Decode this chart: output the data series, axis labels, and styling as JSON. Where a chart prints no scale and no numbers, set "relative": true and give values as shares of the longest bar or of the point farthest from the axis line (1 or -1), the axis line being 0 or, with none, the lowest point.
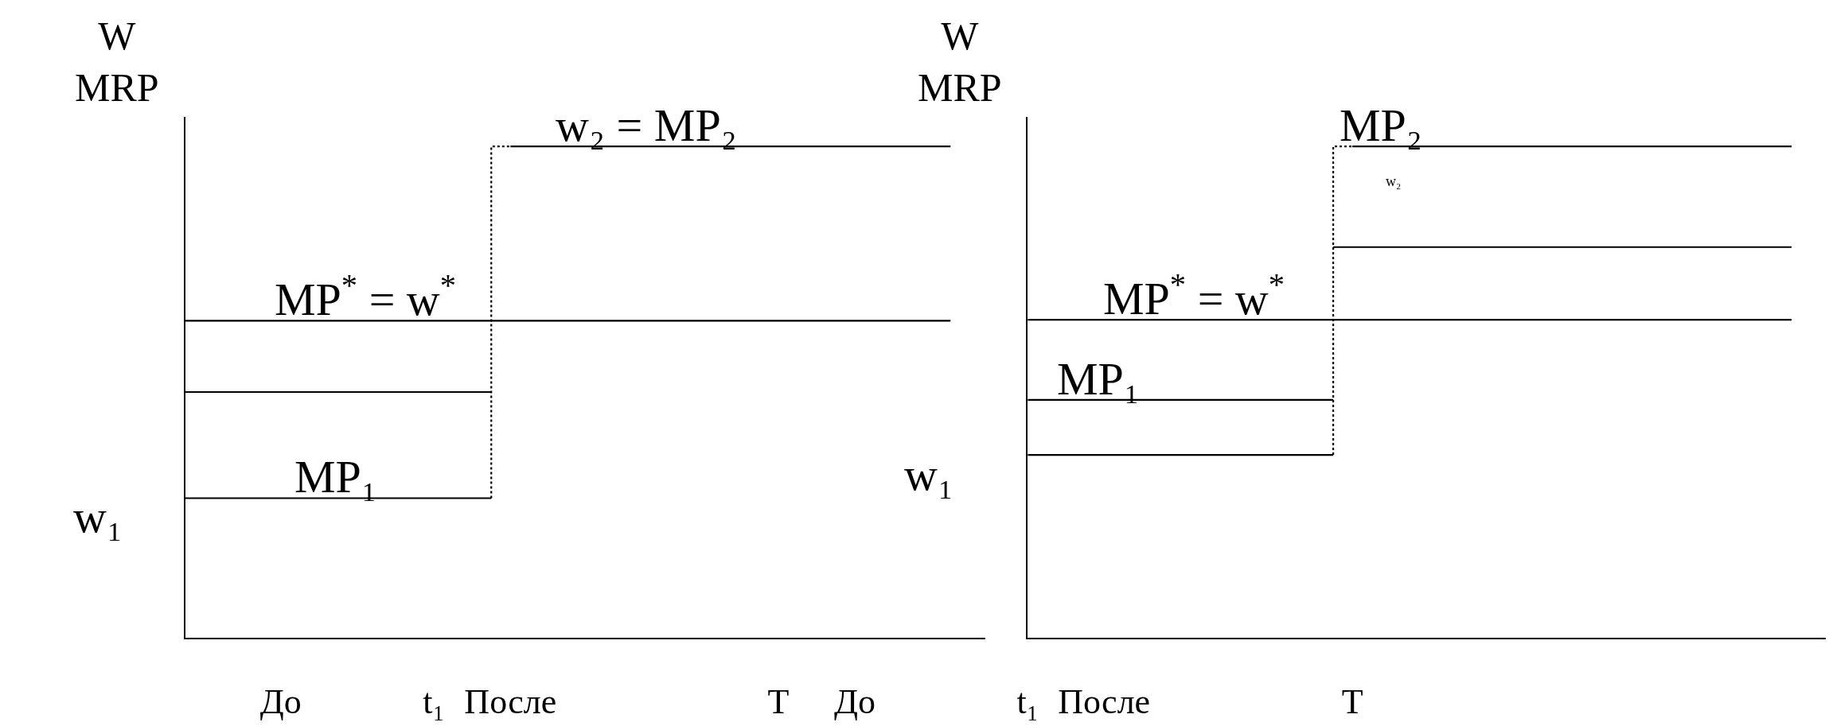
{
  "chart_data": [
    {
      "type": "line",
      "relative": true,
      "ylabel": "W\nMRP",
      "marker": "none",
      "categories": [
        null,
        null,
        null,
        null,
        null,
        "До",
        null,
        null,
        null,
        null,
        null,
        null,
        null,
        "t₁",
        null,
        null,
        null,
        "После",
        null,
        null,
        null,
        null,
        null,
        null,
        null,
        null,
        null,
        null,
        null,
        null,
        null,
        "T",
        null,
        null,
        null,
        "До",
        null,
        null,
        null,
        null,
        null
      ],
      "series": [
        {
          "color": "#000000",
          "values": [
            null,
            null,
            null,
            null,
            null,
            null,
            null,
            null,
            null,
            null,
            null,
            null,
            null,
            null,
            null,
            null,
            null,
            1,
            1,
            1,
            1,
            1,
            1,
            1,
            1,
            1,
            1,
            1,
            1,
            1,
            1,
            1,
            1,
            1,
            1,
            1,
            1,
            1,
            1,
            1,
            1
          ]
        },
        {
          "color": "#000000",
          "values": [
            0.645,
            0.645,
            0.645,
            0.645,
            0.645,
            0.645,
            0.645,
            0.645,
            0.645,
            0.645,
            0.645,
            0.645,
            0.645,
            0.645,
            0.645,
            0.645,
            0.645,
            0.645,
            0.645,
            0.645,
            0.645,
            0.645,
            0.645,
            0.645,
            0.645,
            0.645,
            0.645,
            0.645,
            0.645,
            0.645,
            0.645,
            0.645,
            0.645,
            0.645,
            0.645,
            0.645,
            0.645,
            0.645,
            0.645,
            0.645,
            0.645
          ]
        },
        {
          "color": "#000000",
          "values": [
            0.5,
            0.5,
            0.5,
            0.5,
            0.5,
            0.5,
            0.5,
            0.5,
            0.5,
            0.5,
            0.5,
            0.5,
            0.5,
            0.5,
            0.5,
            0.5,
            0.5,
            null,
            null,
            null,
            null,
            null,
            null,
            null,
            null,
            null,
            null,
            null,
            null,
            null,
            null,
            null,
            null,
            null,
            null,
            null,
            null,
            null,
            null,
            null,
            null
          ]
        },
        {
          "color": "#000000",
          "values": [
            0.284,
            0.284,
            0.284,
            0.284,
            0.284,
            0.284,
            0.284,
            0.284,
            0.284,
            0.284,
            0.284,
            0.284,
            0.284,
            0.284,
            0.284,
            0.284,
            0.284,
            null,
            null,
            null,
            null,
            null,
            null,
            null,
            null,
            null,
            null,
            null,
            null,
            null,
            null,
            null,
            null,
            null,
            null,
            null,
            null,
            null,
            null,
            null,
            null
          ]
        },
        {
          "type": "step",
          "color": "#000000",
          "line_style": "dotted",
          "values": [
            null,
            null,
            null,
            null,
            null,
            null,
            null,
            null,
            null,
            null,
            null,
            null,
            null,
            null,
            null,
            null,
            0.284,
            1,
            null,
            null,
            null,
            null,
            null,
            null,
            null,
            null,
            null,
            null,
            null,
            null,
            null,
            null,
            null,
            null,
            null,
            null,
            null,
            null,
            null,
            null,
            null
          ]
        }
      ],
      "annotations": [
        {
          "text": "w₂ = MP₂",
          "y": 1
        },
        {
          "text": "MP$^{*}$ = w$^{*}$",
          "y": 0.645
        },
        {
          "text": "MP₁",
          "y": 0.284
        },
        "w₁"
      ]
    },
    {
      "type": "line",
      "relative": true,
      "ylabel": "W\nMRP",
      "marker": "none",
      "categories": [
        "t₁",
        null,
        null,
        null,
        "После",
        null,
        null,
        null,
        null,
        null,
        null,
        null,
        null,
        null,
        null,
        null,
        null,
        "T",
        null,
        null,
        null,
        null,
        null,
        null,
        null,
        null,
        null,
        null,
        null,
        null,
        null,
        null,
        null,
        null,
        null,
        null,
        null,
        null,
        null,
        null,
        null
      ],
      "series": [
        {
          "color": "#000000",
          "values": [
            null,
            null,
            null,
            null,
            null,
            null,
            null,
            null,
            null,
            null,
            null,
            null,
            null,
            null,
            null,
            null,
            null,
            1,
            1,
            1,
            1,
            1,
            1,
            1,
            1,
            1,
            1,
            1,
            1,
            1,
            1,
            1,
            1,
            1,
            1,
            1,
            1,
            1,
            1,
            1,
            1
          ]
        },
        {
          "color": "#000000",
          "values": [
            null,
            null,
            null,
            null,
            null,
            null,
            null,
            null,
            null,
            null,
            null,
            null,
            null,
            null,
            null,
            null,
            0.795,
            0.795,
            0.795,
            0.795,
            0.795,
            0.795,
            0.795,
            0.795,
            0.795,
            0.795,
            0.795,
            0.795,
            0.795,
            0.795,
            0.795,
            0.795,
            0.795,
            0.795,
            0.795,
            0.795,
            0.795,
            0.795,
            0.795,
            0.795,
            0.795
          ]
        },
        {
          "color": "#000000",
          "values": [
            0.647,
            0.647,
            0.647,
            0.647,
            0.647,
            0.647,
            0.647,
            0.647,
            0.647,
            0.647,
            0.647,
            0.647,
            0.647,
            0.647,
            0.647,
            0.647,
            0.647,
            0.647,
            0.647,
            0.647,
            0.647,
            0.647,
            0.647,
            0.647,
            0.647,
            0.647,
            0.647,
            0.647,
            0.647,
            0.647,
            0.647,
            0.647,
            0.647,
            0.647,
            0.647,
            0.647,
            0.647,
            0.647,
            0.647,
            0.647,
            0.647
          ]
        },
        {
          "color": "#000000",
          "values": [
            0.484,
            0.484,
            0.484,
            0.484,
            0.484,
            0.484,
            0.484,
            0.484,
            0.484,
            0.484,
            0.484,
            0.484,
            0.484,
            0.484,
            0.484,
            0.484,
            0.484,
            null,
            null,
            null,
            null,
            null,
            null,
            null,
            null,
            null,
            null,
            null,
            null,
            null,
            null,
            null,
            null,
            null,
            null,
            null,
            null,
            null,
            null,
            null,
            null
          ]
        },
        {
          "color": "#000000",
          "values": [
            0.372,
            0.372,
            0.372,
            0.372,
            0.372,
            0.372,
            0.372,
            0.372,
            0.372,
            0.372,
            0.372,
            0.372,
            0.372,
            0.372,
            0.372,
            0.372,
            0.372,
            null,
            null,
            null,
            null,
            null,
            null,
            null,
            null,
            null,
            null,
            null,
            null,
            null,
            null,
            null,
            null,
            null,
            null,
            null,
            null,
            null,
            null,
            null,
            null
          ]
        },
        {
          "type": "step",
          "color": "#000000",
          "line_style": "dotted",
          "values": [
            null,
            null,
            null,
            null,
            null,
            null,
            null,
            null,
            null,
            null,
            null,
            null,
            null,
            null,
            null,
            null,
            0.372,
            1,
            null,
            null,
            null,
            null,
            null,
            null,
            null,
            null,
            null,
            null,
            null,
            null,
            null,
            null,
            null,
            null,
            null,
            null,
            null,
            null,
            null,
            null,
            null
          ]
        }
      ],
      "annotations": [
        {
          "text": "MP₂",
          "y": 1
        },
        "w₂",
        {
          "text": "MP$^{*}$ = w$^{*}$",
          "y": 0.647
        },
        {
          "text": "MP₁",
          "y": 0.484
        },
        "w₁"
      ]
    }
  ]
}
